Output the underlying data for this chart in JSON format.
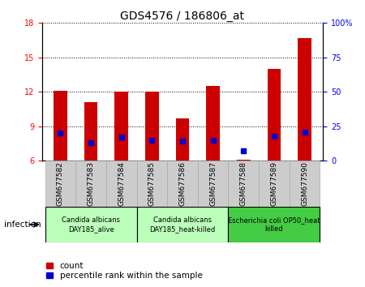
{
  "title": "GDS4576 / 186806_at",
  "samples": [
    "GSM677582",
    "GSM677583",
    "GSM677584",
    "GSM677585",
    "GSM677586",
    "GSM677587",
    "GSM677588",
    "GSM677589",
    "GSM677590"
  ],
  "count_values": [
    12.1,
    11.1,
    12.0,
    12.0,
    9.7,
    12.5,
    6.1,
    14.0,
    16.7
  ],
  "percentile_values": [
    20.0,
    13.0,
    17.0,
    15.0,
    14.0,
    15.0,
    7.0,
    18.0,
    21.0
  ],
  "ylim_left": [
    6,
    18
  ],
  "ylim_right": [
    0,
    100
  ],
  "yticks_left": [
    6,
    9,
    12,
    15,
    18
  ],
  "yticks_right": [
    0,
    25,
    50,
    75,
    100
  ],
  "ytick_labels_right": [
    "0",
    "25",
    "50",
    "75",
    "100%"
  ],
  "bar_color": "#cc0000",
  "dot_color": "#0000cc",
  "bar_width": 0.45,
  "groups": [
    {
      "label": "Candida albicans\nDAY185_alive",
      "start": 0,
      "end": 3,
      "color": "#bbffbb"
    },
    {
      "label": "Candida albicans\nDAY185_heat-killed",
      "start": 3,
      "end": 6,
      "color": "#bbffbb"
    },
    {
      "label": "Escherichia coli OP50_heat\nkilled",
      "start": 6,
      "end": 9,
      "color": "#44cc44"
    }
  ],
  "tick_bg_color": "#cccccc",
  "legend_count_label": "count",
  "legend_pct_label": "percentile rank within the sample",
  "infection_label": "infection",
  "title_fontsize": 10,
  "axis_fontsize": 7.5,
  "tick_fontsize": 7,
  "group_fontsize": 6,
  "sample_fontsize": 6.5
}
